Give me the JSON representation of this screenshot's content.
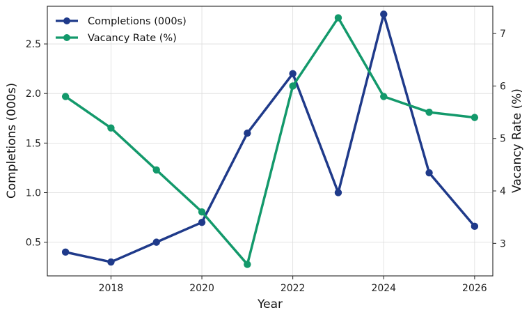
{
  "chart_data": {
    "type": "line",
    "x": [
      2017,
      2018,
      2019,
      2020,
      2021,
      2022,
      2023,
      2024,
      2025,
      2026
    ],
    "xlabel": "Year",
    "xlim": [
      2016.6,
      2026.4
    ],
    "xticks": [
      2018,
      2020,
      2022,
      2024,
      2026
    ],
    "ylabel_left": "Completions (000s)",
    "ylim_left": [
      0.16,
      2.88
    ],
    "yticks_left": [
      0.5,
      1.0,
      1.5,
      2.0,
      2.5
    ],
    "ylabel_right": "Vacancy Rate (%)",
    "ylim_right": [
      2.38,
      7.52
    ],
    "yticks_right": [
      3,
      4,
      5,
      6,
      7
    ],
    "grid": true,
    "legend_position": "top-left",
    "series": [
      {
        "name": "Completions (000s)",
        "axis": "left",
        "color": "#1f3a8a",
        "values": [
          0.4,
          0.3,
          0.5,
          0.7,
          1.6,
          2.2,
          1.0,
          2.8,
          1.2,
          0.66
        ]
      },
      {
        "name": "Vacancy Rate (%)",
        "axis": "right",
        "color": "#13996b",
        "values": [
          5.8,
          5.2,
          4.4,
          3.6,
          2.6,
          6.0,
          7.3,
          5.8,
          5.5,
          5.4
        ]
      }
    ]
  }
}
